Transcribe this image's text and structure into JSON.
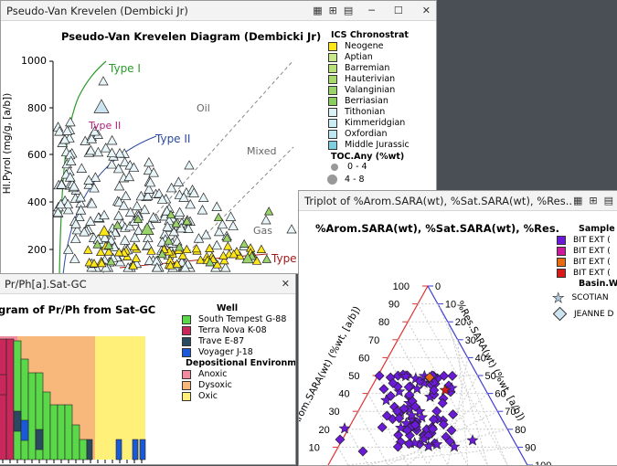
{
  "background_color": "#4a4f55",
  "vk": {
    "title": "Pseudo-Van Krevelen (Dembicki Jr)",
    "chart_title": "Pseudo-Van Krevelen Diagram (Dembicki Jr)",
    "y_label": "HI.Pyrol (mg/g, [a/b])",
    "y_ticks": [
      "1000",
      "800",
      "600",
      "400",
      "200"
    ],
    "curve_labels": {
      "type1": "Type I",
      "type2": "Type II",
      "type2s": "Type II",
      "oil": "Oil",
      "mixed": "Mixed",
      "gas": "Gas",
      "type3": "Type"
    },
    "legend_title": "ICS Chronostrat",
    "legend": [
      {
        "label": "Neogene",
        "color": "#ffe619"
      },
      {
        "label": "Aptian",
        "color": "#c8e68c"
      },
      {
        "label": "Barremian",
        "color": "#b9e17a"
      },
      {
        "label": "Hauterivian",
        "color": "#a9d96d"
      },
      {
        "label": "Valanginian",
        "color": "#99d36a"
      },
      {
        "label": "Berriasian",
        "color": "#8ccd60"
      },
      {
        "label": "Tithonian",
        "color": "#d9f1f7"
      },
      {
        "label": "Kimmeridgian",
        "color": "#ccecf4"
      },
      {
        "label": "Oxfordian",
        "color": "#bfe7f1"
      },
      {
        "label": "Middle Jurassic",
        "color": "#80cfe0"
      }
    ],
    "toc_title": "TOC.Any (%wt)",
    "toc_items": [
      "0 - 4",
      "4 - 8"
    ]
  },
  "prph": {
    "title": "Pr/Ph[a].Sat-GC",
    "chart_title": "gram of Pr/Ph from Sat-GC",
    "legend_title1": "Well",
    "wells": [
      {
        "label": "South Tempest G-88",
        "color": "#5ad84a"
      },
      {
        "label": "Terra Nova K-08",
        "color": "#c8285a"
      },
      {
        "label": "Trave E-87",
        "color": "#2a4a60"
      },
      {
        "label": "Voyager J-18",
        "color": "#1a5ad8"
      }
    ],
    "legend_title2": "Depositional Environment",
    "envs": [
      {
        "label": "Anoxic",
        "color": "#f08ca0"
      },
      {
        "label": "Dysoxic",
        "color": "#f8b87c"
      },
      {
        "label": "Oxic",
        "color": "#fff07a"
      }
    ]
  },
  "tri": {
    "title": "Triplot of %Arom.SARA(wt), %Sat.SARA(wt), %Res...",
    "chart_title": "%Arom.SARA(wt), %Sat.SARA(wt), %Res.",
    "left_label": "%Arom.SARA(wt) (%wt, [a/b])",
    "right_label": "%Res.SARA(wt) (%wt, [a/b])",
    "left_ticks": [
      "100",
      "90",
      "80",
      "70",
      "60",
      "50",
      "40",
      "30",
      "20",
      "10"
    ],
    "right_ticks": [
      "0",
      "10",
      "20",
      "30",
      "40",
      "50",
      "60",
      "70",
      "80",
      "90",
      "100"
    ],
    "legend_title": "Sample T",
    "samples": [
      {
        "label": "BIT EXT (",
        "color": "#6a1ad8"
      },
      {
        "label": "BIT EXT (",
        "color": "#c81a9a"
      },
      {
        "label": "BIT EXT (",
        "color": "#e86a10"
      },
      {
        "label": "BIT EXT (",
        "color": "#d81a1a"
      }
    ],
    "basin_title": "Basin.W",
    "basins": [
      {
        "label": "SCOTIAN",
        "icon": "star-icon"
      },
      {
        "label": "JEANNE D",
        "icon": "diamond-icon"
      }
    ]
  }
}
